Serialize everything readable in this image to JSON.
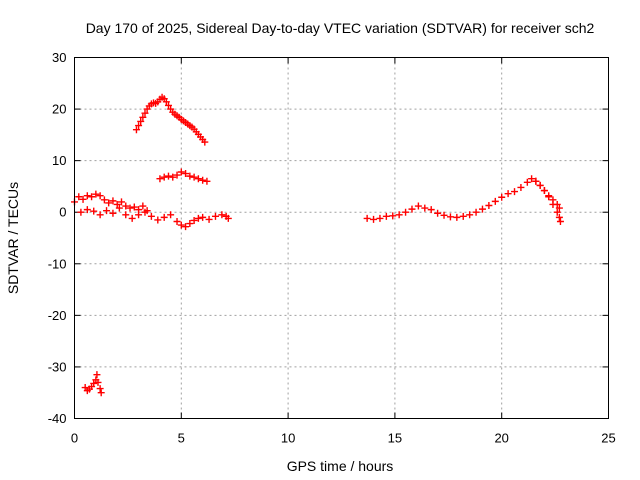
{
  "chart_data": {
    "type": "scatter",
    "title": "Day 170 of 2025, Sidereal Day-to-day VTEC variation (SDTVAR) for receiver sch2",
    "xlabel": "GPS time / hours",
    "ylabel": "SDTVAR / TECUs",
    "xlim": [
      0,
      25
    ],
    "ylim": [
      -40,
      30
    ],
    "xticks": [
      0,
      5,
      10,
      15,
      20,
      25
    ],
    "yticks": [
      -40,
      -30,
      -20,
      -10,
      0,
      10,
      20,
      30
    ],
    "xtick_labels": [
      "0",
      "5",
      "10",
      "15",
      "20",
      "25"
    ],
    "ytick_labels": [
      "-40",
      "-30",
      "-20",
      "-10",
      "0",
      "10",
      "20",
      "30"
    ],
    "grid": true,
    "marker": "plus",
    "color": "#ff0000",
    "series": [
      {
        "name": "segment-upper-arc",
        "points": [
          [
            2.9,
            16
          ],
          [
            3.0,
            16.8
          ],
          [
            3.1,
            17.6
          ],
          [
            3.2,
            18.4
          ],
          [
            3.3,
            19.2
          ],
          [
            3.4,
            20.0
          ],
          [
            3.5,
            20.6
          ],
          [
            3.6,
            21.0
          ],
          [
            3.7,
            21.2
          ],
          [
            3.8,
            21.1
          ],
          [
            3.9,
            21.4
          ],
          [
            4.0,
            21.9
          ],
          [
            4.1,
            22.3
          ],
          [
            4.2,
            22.0
          ],
          [
            4.3,
            21.4
          ],
          [
            4.4,
            20.7
          ],
          [
            4.5,
            20.0
          ],
          [
            4.6,
            19.4
          ],
          [
            4.7,
            19.0
          ],
          [
            4.8,
            18.7
          ],
          [
            4.9,
            18.4
          ],
          [
            5.0,
            18.0
          ],
          [
            5.1,
            17.7
          ],
          [
            5.2,
            17.4
          ],
          [
            5.3,
            17.1
          ],
          [
            5.4,
            16.8
          ],
          [
            5.5,
            16.5
          ],
          [
            5.6,
            16.1
          ],
          [
            5.7,
            15.6
          ],
          [
            5.8,
            15.1
          ],
          [
            5.9,
            14.6
          ],
          [
            6.0,
            14.1
          ],
          [
            6.1,
            13.6
          ]
        ]
      },
      {
        "name": "segment-middle",
        "points": [
          [
            4.0,
            6.5
          ],
          [
            4.2,
            6.8
          ],
          [
            4.4,
            7.0
          ],
          [
            4.6,
            6.8
          ],
          [
            4.8,
            7.2
          ],
          [
            5.0,
            7.8
          ],
          [
            5.2,
            7.5
          ],
          [
            5.4,
            7.0
          ],
          [
            5.6,
            6.8
          ],
          [
            5.8,
            6.5
          ],
          [
            6.0,
            6.2
          ],
          [
            6.2,
            6.0
          ]
        ]
      },
      {
        "name": "segment-near-zero-upper",
        "points": [
          [
            0.0,
            2.0
          ],
          [
            0.2,
            3.0
          ],
          [
            0.4,
            2.5
          ],
          [
            0.6,
            3.2
          ],
          [
            0.8,
            3.0
          ],
          [
            1.0,
            3.5
          ],
          [
            1.2,
            3.2
          ],
          [
            1.4,
            2.4
          ],
          [
            1.6,
            1.8
          ],
          [
            1.8,
            2.2
          ],
          [
            2.0,
            1.5
          ],
          [
            2.2,
            2.0
          ],
          [
            2.4,
            1.2
          ],
          [
            2.6,
            0.8
          ],
          [
            2.8,
            1.0
          ],
          [
            3.0,
            0.5
          ],
          [
            3.2,
            1.2
          ],
          [
            3.4,
            0.3
          ]
        ]
      },
      {
        "name": "segment-near-zero-lower",
        "points": [
          [
            0.3,
            0.0
          ],
          [
            0.6,
            0.5
          ],
          [
            0.9,
            0.2
          ],
          [
            1.2,
            -0.5
          ],
          [
            1.5,
            0.3
          ],
          [
            1.8,
            -0.2
          ],
          [
            2.1,
            0.8
          ],
          [
            2.4,
            -0.5
          ],
          [
            2.7,
            -1.2
          ],
          [
            3.0,
            -0.5
          ],
          [
            3.3,
            0.0
          ],
          [
            3.6,
            -0.8
          ],
          [
            3.9,
            -1.5
          ],
          [
            4.2,
            -1.0
          ],
          [
            4.5,
            -0.5
          ],
          [
            4.8,
            -1.8
          ],
          [
            5.0,
            -2.5
          ],
          [
            5.2,
            -2.8
          ],
          [
            5.4,
            -2.2
          ],
          [
            5.6,
            -1.6
          ],
          [
            5.8,
            -1.2
          ],
          [
            6.0,
            -1.0
          ],
          [
            6.3,
            -1.4
          ],
          [
            6.6,
            -0.8
          ],
          [
            6.9,
            -0.5
          ],
          [
            7.1,
            -0.8
          ],
          [
            7.2,
            -1.2
          ]
        ]
      },
      {
        "name": "segment-bottom-cluster",
        "points": [
          [
            0.5,
            -34.0
          ],
          [
            0.6,
            -34.6
          ],
          [
            0.7,
            -34.3
          ],
          [
            0.8,
            -33.8
          ],
          [
            0.9,
            -33.2
          ],
          [
            1.0,
            -32.5
          ],
          [
            1.05,
            -31.5
          ],
          [
            1.1,
            -33.0
          ],
          [
            1.2,
            -34.2
          ],
          [
            1.25,
            -35.0
          ]
        ]
      },
      {
        "name": "segment-afternoon",
        "points": [
          [
            13.7,
            -1.2
          ],
          [
            14.0,
            -1.4
          ],
          [
            14.3,
            -1.2
          ],
          [
            14.6,
            -0.8
          ],
          [
            14.9,
            -0.7
          ],
          [
            15.2,
            -0.5
          ],
          [
            15.5,
            0.0
          ],
          [
            15.8,
            0.6
          ],
          [
            16.1,
            1.2
          ],
          [
            16.4,
            0.8
          ],
          [
            16.7,
            0.5
          ],
          [
            17.0,
            -0.2
          ],
          [
            17.3,
            -0.6
          ],
          [
            17.6,
            -0.9
          ],
          [
            17.9,
            -1.0
          ],
          [
            18.2,
            -0.8
          ],
          [
            18.5,
            -0.5
          ],
          [
            18.8,
            0.0
          ],
          [
            19.1,
            0.6
          ],
          [
            19.4,
            1.3
          ],
          [
            19.7,
            2.1
          ],
          [
            20.0,
            2.9
          ],
          [
            20.3,
            3.6
          ],
          [
            20.6,
            4.0
          ],
          [
            20.9,
            4.8
          ],
          [
            21.2,
            5.8
          ],
          [
            21.4,
            6.5
          ],
          [
            21.6,
            6.0
          ],
          [
            21.8,
            5.2
          ],
          [
            22.0,
            4.2
          ],
          [
            22.2,
            3.0
          ],
          [
            22.4,
            1.5
          ],
          [
            22.6,
            0.0
          ],
          [
            22.7,
            -1.0
          ],
          [
            22.75,
            -1.8
          ]
        ]
      },
      {
        "name": "segment-afternoon-upper",
        "points": [
          [
            21.6,
            6.0
          ],
          [
            21.8,
            5.2
          ],
          [
            22.0,
            4.2
          ],
          [
            22.2,
            3.2
          ],
          [
            22.4,
            2.4
          ],
          [
            22.6,
            1.5
          ],
          [
            22.7,
            0.8
          ]
        ]
      }
    ]
  }
}
